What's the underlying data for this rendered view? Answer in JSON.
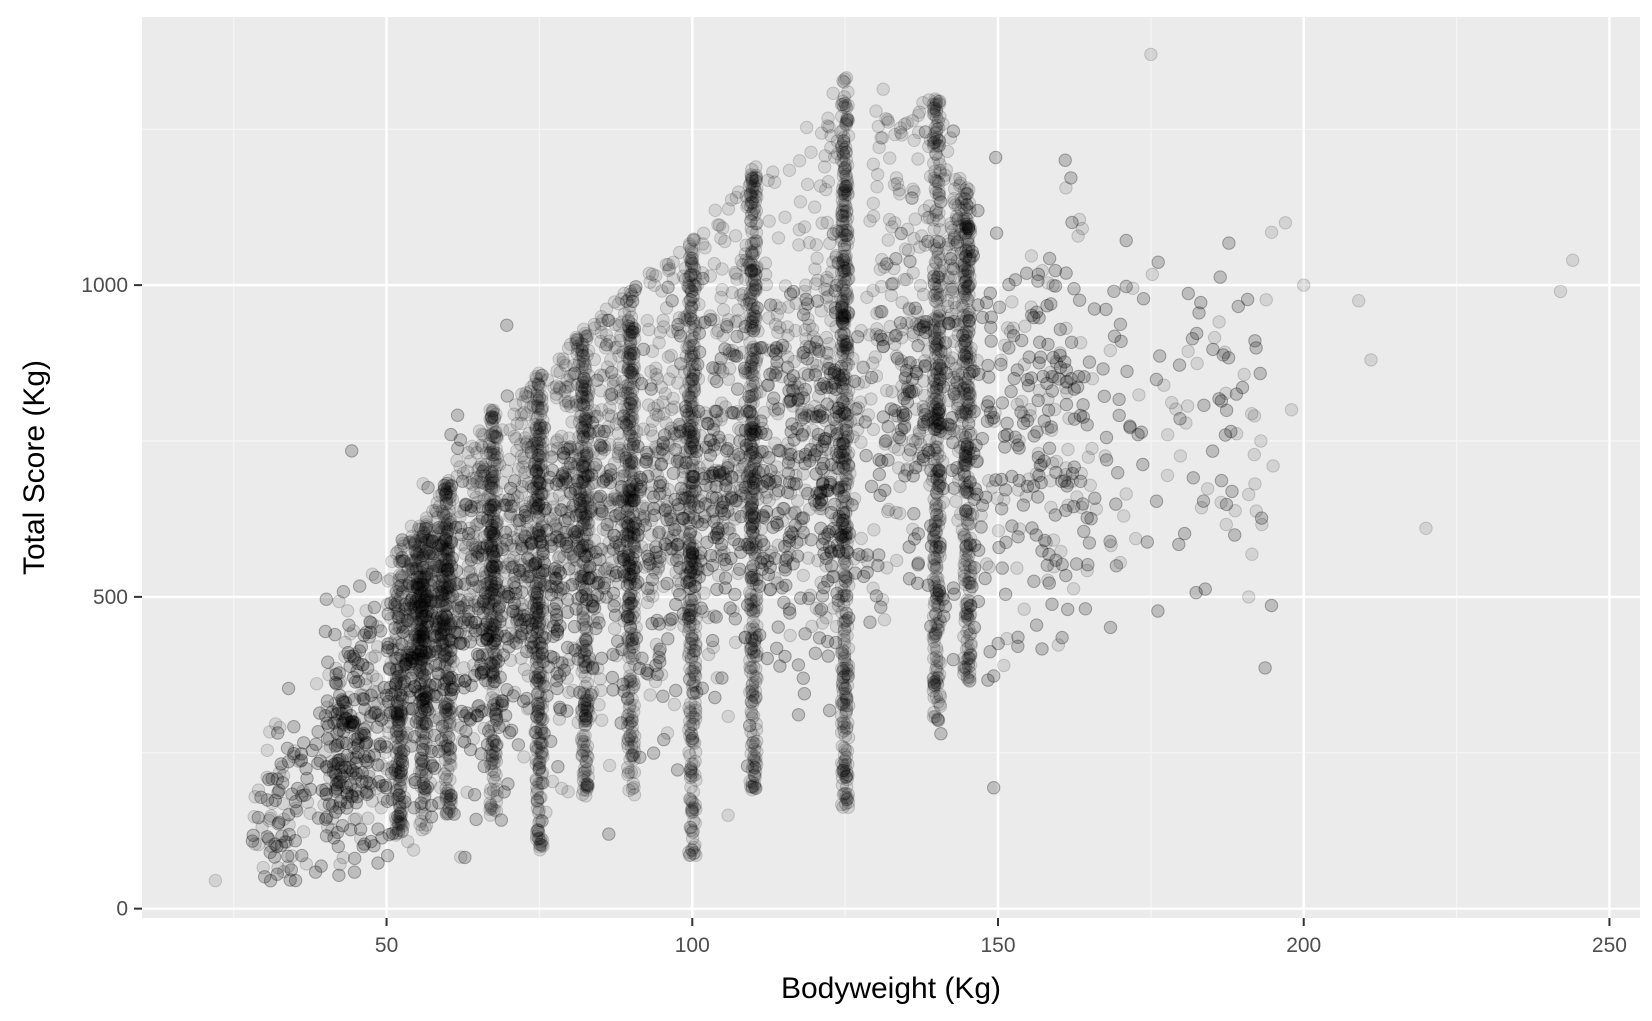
{
  "colors": {
    "panel_background": "#ebebeb",
    "grid_major": "#ffffff",
    "grid_minor": "#f5f5f5",
    "point": "#000000",
    "tick": "#333333"
  },
  "chart_data": {
    "type": "scatter",
    "title": "",
    "xlabel": "Bodyweight (Kg)",
    "ylabel": "Total Score (Kg)",
    "xlim": [
      10,
      255
    ],
    "ylim": [
      -15,
      1430
    ],
    "x_ticks": [
      50,
      100,
      150,
      200,
      250
    ],
    "y_ticks": [
      0,
      500,
      1000
    ],
    "x_tick_labels": [
      "50",
      "100",
      "150",
      "200",
      "250"
    ],
    "y_tick_labels": [
      "0",
      "500",
      "1000"
    ],
    "grid": true,
    "legend": "none",
    "point_alpha": 0.1,
    "weight_classes": [
      {
        "bodyweight": 52,
        "total_min": 110,
        "total_max": 580
      },
      {
        "bodyweight": 56,
        "total_min": 120,
        "total_max": 620
      },
      {
        "bodyweight": 60,
        "total_min": 150,
        "total_max": 690
      },
      {
        "bodyweight": 67.5,
        "total_min": 150,
        "total_max": 800
      },
      {
        "bodyweight": 75,
        "total_min": 90,
        "total_max": 860
      },
      {
        "bodyweight": 82.5,
        "total_min": 180,
        "total_max": 930
      },
      {
        "bodyweight": 90,
        "total_min": 180,
        "total_max": 1000
      },
      {
        "bodyweight": 100,
        "total_min": 85,
        "total_max": 1080
      },
      {
        "bodyweight": 110,
        "total_min": 190,
        "total_max": 1200
      },
      {
        "bodyweight": 125,
        "total_min": 150,
        "total_max": 1340
      },
      {
        "bodyweight": 140,
        "total_min": 300,
        "total_max": 1300
      },
      {
        "bodyweight": 145,
        "total_min": 360,
        "total_max": 1160
      }
    ],
    "density_trend": [
      {
        "bodyweight": 30,
        "total_center": 130,
        "spread": 60
      },
      {
        "bodyweight": 45,
        "total_center": 280,
        "spread": 110
      },
      {
        "bodyweight": 60,
        "total_center": 420,
        "spread": 130
      },
      {
        "bodyweight": 75,
        "total_center": 520,
        "spread": 140
      },
      {
        "bodyweight": 90,
        "total_center": 600,
        "spread": 150
      },
      {
        "bodyweight": 110,
        "total_center": 680,
        "spread": 160
      },
      {
        "bodyweight": 130,
        "total_center": 740,
        "spread": 170
      },
      {
        "bodyweight": 150,
        "total_center": 770,
        "spread": 170
      },
      {
        "bodyweight": 175,
        "total_center": 780,
        "spread": 160
      },
      {
        "bodyweight": 190,
        "total_center": 800,
        "spread": 150
      }
    ],
    "outliers": [
      {
        "x": 22,
        "y": 45
      },
      {
        "x": 175,
        "y": 1370
      },
      {
        "x": 197,
        "y": 1100
      },
      {
        "x": 200,
        "y": 1000
      },
      {
        "x": 209,
        "y": 975
      },
      {
        "x": 211,
        "y": 880
      },
      {
        "x": 220,
        "y": 610
      },
      {
        "x": 242,
        "y": 990
      },
      {
        "x": 244,
        "y": 1040
      },
      {
        "x": 191,
        "y": 500
      },
      {
        "x": 193,
        "y": 750
      },
      {
        "x": 195,
        "y": 710
      },
      {
        "x": 198,
        "y": 800
      }
    ]
  }
}
